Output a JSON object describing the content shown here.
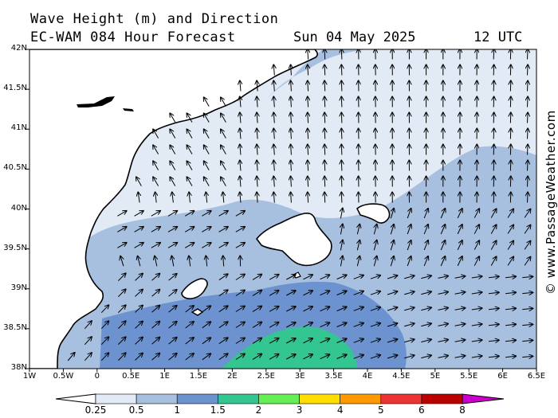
{
  "header": {
    "title_line1": "Wave Height (m) and Direction",
    "title_line2": "EC-WAM 084 Hour Forecast",
    "date": "Sun 04 May 2025",
    "time": "12 UTC"
  },
  "credit": "© www.PassageWeather.com",
  "axes": {
    "lat_labels": [
      "42N",
      "41.5N",
      "41N",
      "40.5N",
      "40N",
      "39.5N",
      "39N",
      "38.5N",
      "38N"
    ],
    "lon_labels": [
      "1W",
      "0.5W",
      "0",
      "0.5E",
      "1E",
      "1.5E",
      "2E",
      "2.5E",
      "3E",
      "3.5E",
      "4E",
      "4.5E",
      "5E",
      "5.5E",
      "6E",
      "6.5E"
    ]
  },
  "colorbar": {
    "labels": [
      "0.25",
      "0.5",
      "1",
      "1.5",
      "2",
      "3",
      "4",
      "5",
      "6",
      "8"
    ],
    "colors": [
      "#e2eaf6",
      "#a8c0e0",
      "#6c93d0",
      "#33c690",
      "#66ee55",
      "#ffdd00",
      "#ff9900",
      "#ee3333",
      "#bb0000",
      "#cc00cc"
    ]
  },
  "colors": {
    "land": "#ffffff",
    "coast": "#000000",
    "wave_lt_0_5": "#e2eaf6",
    "wave_0_5_1": "#a8c0e0",
    "wave_1_1_5": "#6c93d0",
    "wave_1_5_2": "#33c690"
  }
}
